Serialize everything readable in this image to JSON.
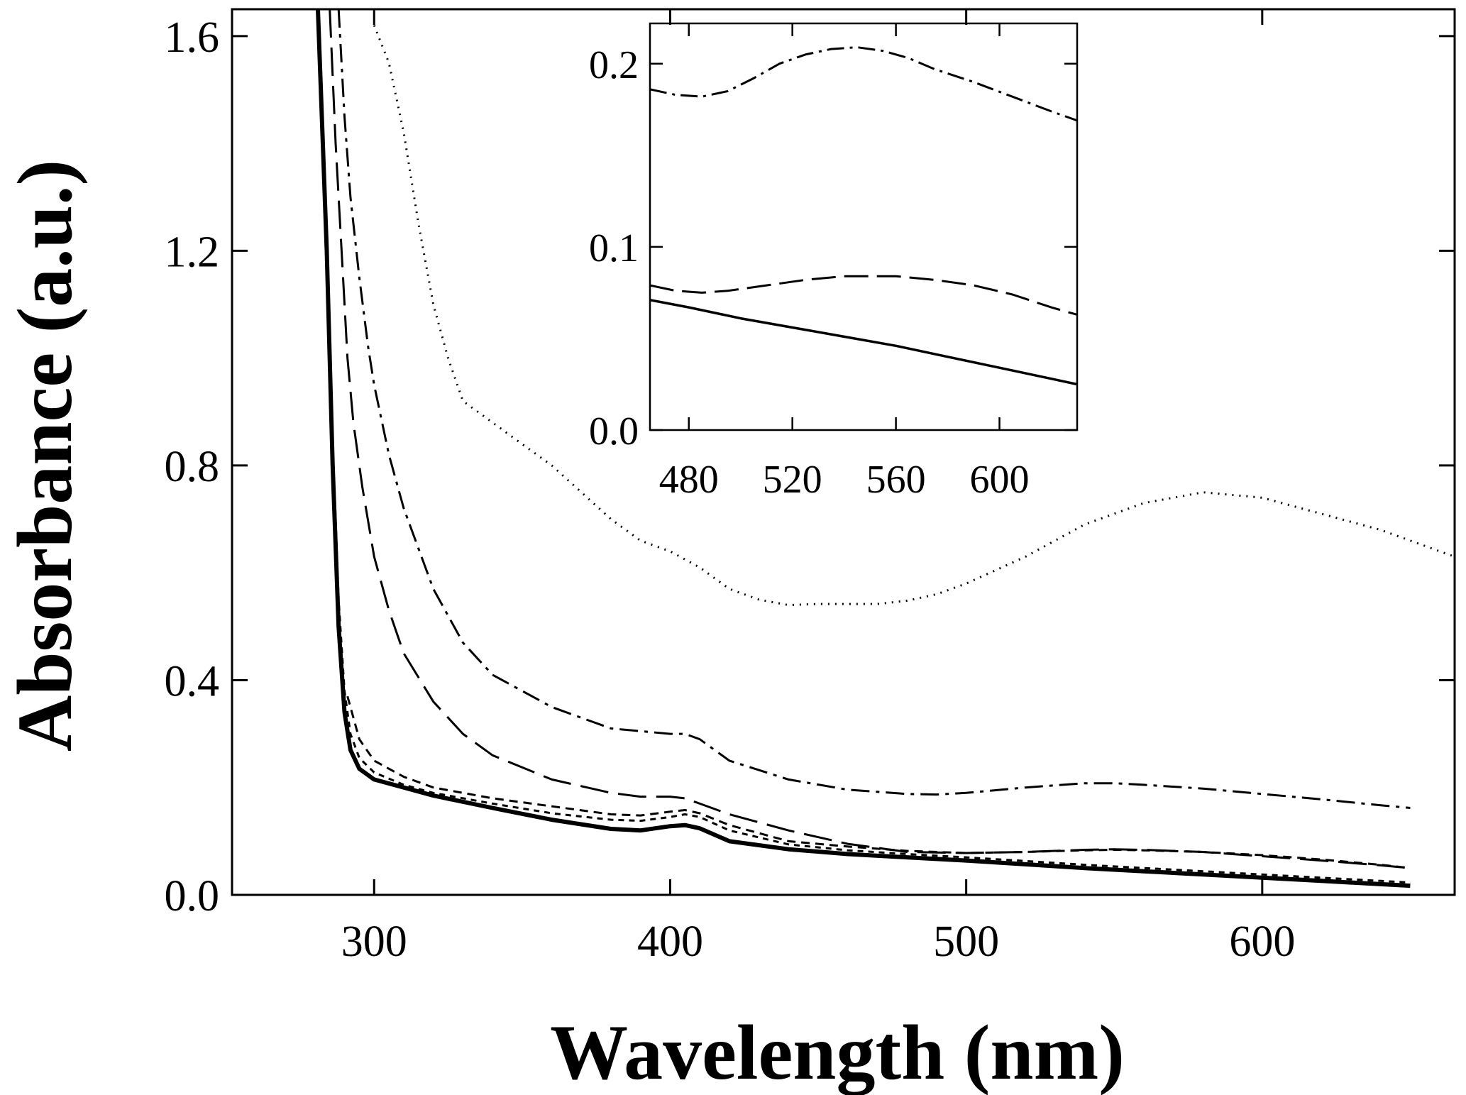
{
  "chart_data": [
    {
      "name": "main",
      "type": "line",
      "title": "",
      "xlabel": "Wavelength (nm)",
      "ylabel": "Absorbance (a.u.)",
      "xlim": [
        252,
        665
      ],
      "ylim": [
        0,
        1.65
      ],
      "xticks": [
        300,
        400,
        500,
        600
      ],
      "yticks": [
        0.0,
        0.4,
        0.8,
        1.2,
        1.6
      ],
      "xtick_labels": [
        "300",
        "400",
        "500",
        "600"
      ],
      "ytick_labels": [
        "0.0",
        "0.4",
        "0.8",
        "1.2",
        "1.6"
      ],
      "grid": false,
      "series": [
        {
          "name": "solid-thick",
          "style": "solid",
          "width": 6,
          "x": [
            281,
            284,
            286,
            288,
            290,
            292,
            295,
            300,
            310,
            320,
            340,
            360,
            380,
            390,
            400,
            405,
            410,
            420,
            440,
            460,
            480,
            500,
            520,
            540,
            560,
            580,
            600,
            620,
            640,
            650
          ],
          "y": [
            1.65,
            1.2,
            0.8,
            0.5,
            0.34,
            0.27,
            0.235,
            0.215,
            0.2,
            0.185,
            0.162,
            0.14,
            0.123,
            0.12,
            0.128,
            0.13,
            0.124,
            0.1,
            0.085,
            0.076,
            0.07,
            0.064,
            0.057,
            0.05,
            0.044,
            0.038,
            0.032,
            0.026,
            0.02,
            0.017
          ]
        },
        {
          "name": "short-dash-1",
          "style": "8,7",
          "width": 3,
          "x": [
            281,
            284,
            286,
            288,
            290,
            292,
            295,
            300,
            310,
            320,
            340,
            360,
            380,
            390,
            400,
            405,
            410,
            420,
            440,
            460,
            480,
            500,
            520,
            540,
            560,
            580,
            600,
            620,
            640,
            650
          ],
          "y": [
            1.65,
            1.2,
            0.85,
            0.55,
            0.38,
            0.3,
            0.255,
            0.228,
            0.205,
            0.19,
            0.17,
            0.152,
            0.14,
            0.138,
            0.145,
            0.15,
            0.145,
            0.12,
            0.094,
            0.083,
            0.076,
            0.07,
            0.063,
            0.056,
            0.05,
            0.044,
            0.038,
            0.032,
            0.026,
            0.023
          ]
        },
        {
          "name": "short-dash-2",
          "style": "12,8",
          "width": 3,
          "x": [
            291,
            295,
            300,
            310,
            320,
            340,
            360,
            380,
            390,
            400,
            405,
            410,
            420,
            440,
            460,
            480,
            500,
            520,
            540,
            550,
            560,
            580,
            600,
            620,
            640,
            650
          ],
          "y": [
            0.37,
            0.29,
            0.25,
            0.22,
            0.2,
            0.18,
            0.165,
            0.15,
            0.148,
            0.155,
            0.158,
            0.152,
            0.13,
            0.1,
            0.09,
            0.082,
            0.078,
            0.08,
            0.083,
            0.084,
            0.083,
            0.08,
            0.074,
            0.066,
            0.056,
            0.05
          ]
        },
        {
          "name": "long-dash",
          "style": "40,14",
          "width": 3,
          "x": [
            285,
            287,
            289,
            291,
            293,
            296,
            300,
            305,
            310,
            320,
            330,
            340,
            360,
            380,
            390,
            400,
            405,
            410,
            420,
            440,
            460,
            480,
            500,
            520,
            540,
            550,
            560,
            580,
            600,
            620,
            640,
            650
          ],
          "y": [
            1.65,
            1.4,
            1.2,
            1.0,
            0.88,
            0.76,
            0.63,
            0.53,
            0.45,
            0.36,
            0.3,
            0.26,
            0.215,
            0.19,
            0.183,
            0.183,
            0.18,
            0.17,
            0.15,
            0.12,
            0.095,
            0.08,
            0.078,
            0.08,
            0.084,
            0.085,
            0.084,
            0.08,
            0.072,
            0.064,
            0.055,
            0.05
          ]
        },
        {
          "name": "dash-dot",
          "style": "26,9,5,9",
          "width": 3,
          "x": [
            288,
            290,
            292,
            295,
            298,
            300,
            305,
            310,
            320,
            330,
            340,
            360,
            380,
            390,
            400,
            405,
            410,
            420,
            440,
            460,
            480,
            490,
            500,
            520,
            540,
            550,
            560,
            580,
            600,
            620,
            640,
            650
          ],
          "y": [
            1.65,
            1.45,
            1.3,
            1.15,
            1.02,
            0.95,
            0.82,
            0.72,
            0.57,
            0.47,
            0.41,
            0.35,
            0.31,
            0.305,
            0.3,
            0.3,
            0.29,
            0.25,
            0.215,
            0.196,
            0.188,
            0.187,
            0.19,
            0.2,
            0.208,
            0.208,
            0.205,
            0.198,
            0.188,
            0.178,
            0.167,
            0.162
          ]
        },
        {
          "name": "dotted",
          "style": "2,8",
          "width": 3,
          "x": [
            300,
            305,
            310,
            315,
            320,
            325,
            330,
            340,
            350,
            360,
            370,
            380,
            390,
            400,
            410,
            420,
            430,
            440,
            450,
            460,
            470,
            480,
            490,
            500,
            520,
            540,
            560,
            580,
            600,
            620,
            640,
            650,
            665
          ],
          "y": [
            1.62,
            1.55,
            1.42,
            1.25,
            1.1,
            1.0,
            0.92,
            0.88,
            0.84,
            0.8,
            0.75,
            0.7,
            0.66,
            0.64,
            0.61,
            0.57,
            0.55,
            0.54,
            0.542,
            0.542,
            0.542,
            0.548,
            0.56,
            0.58,
            0.63,
            0.69,
            0.73,
            0.75,
            0.74,
            0.71,
            0.68,
            0.66,
            0.63
          ]
        }
      ]
    },
    {
      "name": "inset",
      "type": "line",
      "title": "",
      "xlabel": "",
      "ylabel": "",
      "xlim": [
        465,
        630
      ],
      "ylim": [
        0,
        0.222
      ],
      "xticks": [
        480,
        520,
        560,
        600
      ],
      "yticks": [
        0.0,
        0.1,
        0.2
      ],
      "xtick_labels": [
        "480",
        "520",
        "560",
        "600"
      ],
      "ytick_labels": [
        "0.0",
        "0.1",
        "0.2"
      ],
      "grid": false,
      "series": [
        {
          "name": "inset-solid",
          "style": "solid",
          "width": 3.5,
          "x": [
            465,
            480,
            500,
            520,
            540,
            560,
            580,
            600,
            620,
            630
          ],
          "y": [
            0.071,
            0.067,
            0.061,
            0.056,
            0.051,
            0.046,
            0.04,
            0.034,
            0.028,
            0.025
          ]
        },
        {
          "name": "inset-long-dash",
          "style": "34,12",
          "width": 3,
          "x": [
            465,
            475,
            485,
            495,
            510,
            525,
            540,
            550,
            560,
            575,
            590,
            605,
            620,
            630
          ],
          "y": [
            0.079,
            0.076,
            0.075,
            0.076,
            0.079,
            0.082,
            0.084,
            0.084,
            0.084,
            0.082,
            0.079,
            0.074,
            0.067,
            0.063
          ]
        },
        {
          "name": "inset-dash-dot",
          "style": "24,8,4,8",
          "width": 3,
          "x": [
            465,
            475,
            485,
            495,
            505,
            515,
            525,
            535,
            545,
            555,
            565,
            575,
            590,
            605,
            620,
            630
          ],
          "y": [
            0.186,
            0.183,
            0.182,
            0.185,
            0.192,
            0.2,
            0.205,
            0.208,
            0.209,
            0.207,
            0.203,
            0.197,
            0.19,
            0.182,
            0.174,
            0.169
          ]
        }
      ]
    }
  ]
}
